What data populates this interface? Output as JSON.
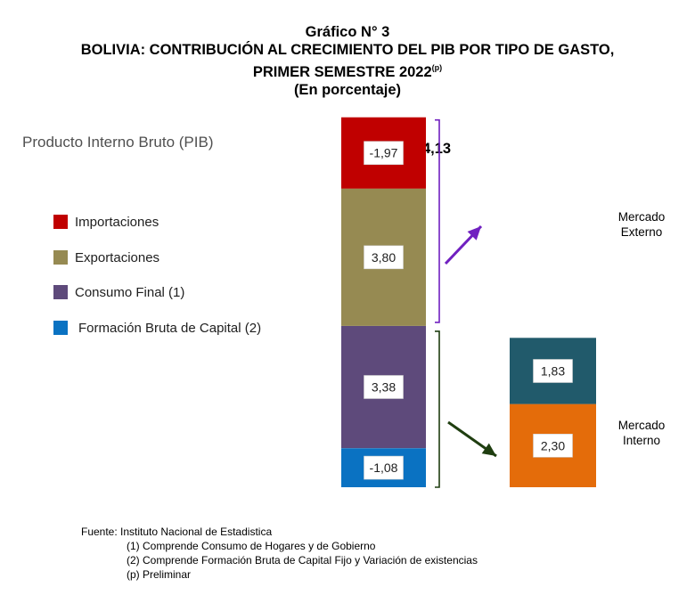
{
  "title": {
    "line1": "Gráfico N° 3",
    "line2": "BOLIVIA: CONTRIBUCIÓN AL CRECIMIENTO DEL PIB POR TIPO DE GASTO,",
    "line3": "PRIMER SEMESTRE 2022",
    "line3_sup": "(p)",
    "line4": "(En porcentaje)"
  },
  "pib_label": "Producto Interno Bruto (PIB)",
  "legend": [
    {
      "label": "Importaciones",
      "color": "#C00000"
    },
    {
      "label": "Exportaciones",
      "color": "#968A52"
    },
    {
      "label": "Consumo Final (1)",
      "color": "#5E4A7B"
    },
    {
      "label": "Formación Bruta de Capital (2)",
      "color": "#0A72C2"
    }
  ],
  "chart_data": {
    "type": "bar",
    "stacked": true,
    "total_label": "4,13",
    "bars": [
      {
        "segments": [
          {
            "name": "Formación Bruta de Capital (2)",
            "value": -1.08,
            "label": "-1,08",
            "color": "#0A72C2"
          },
          {
            "name": "Consumo Final (1)",
            "value": 3.38,
            "label": "3,38",
            "color": "#5E4A7B"
          },
          {
            "name": "Exportaciones",
            "value": 3.8,
            "label": "3,80",
            "color": "#968A52"
          },
          {
            "name": "Importaciones",
            "value": -1.97,
            "label": "-1,97",
            "color": "#C00000"
          }
        ]
      },
      {
        "segments": [
          {
            "name": "Mercado Interno",
            "value": 2.3,
            "label": "2,30",
            "color": "#E46C0A"
          },
          {
            "name": "Mercado Externo",
            "value": 1.83,
            "label": "1,83",
            "color": "#215A6B"
          }
        ]
      }
    ],
    "annotations": {
      "externo": [
        "Mercado",
        "Externo"
      ],
      "interno": [
        "Mercado",
        "Interno"
      ]
    },
    "arrow_colors": {
      "externo": "#7020C0",
      "interno": "#1F3E10"
    }
  },
  "footnotes": {
    "source": "Fuente: Instituto Nacional de Estadistica",
    "note1": "(1) Comprende Consumo de Hogares y de Gobierno",
    "note2": "(2) Comprende Formación Bruta de Capital Fijo y Variación de existencias",
    "note3": "(p) Preliminar"
  }
}
